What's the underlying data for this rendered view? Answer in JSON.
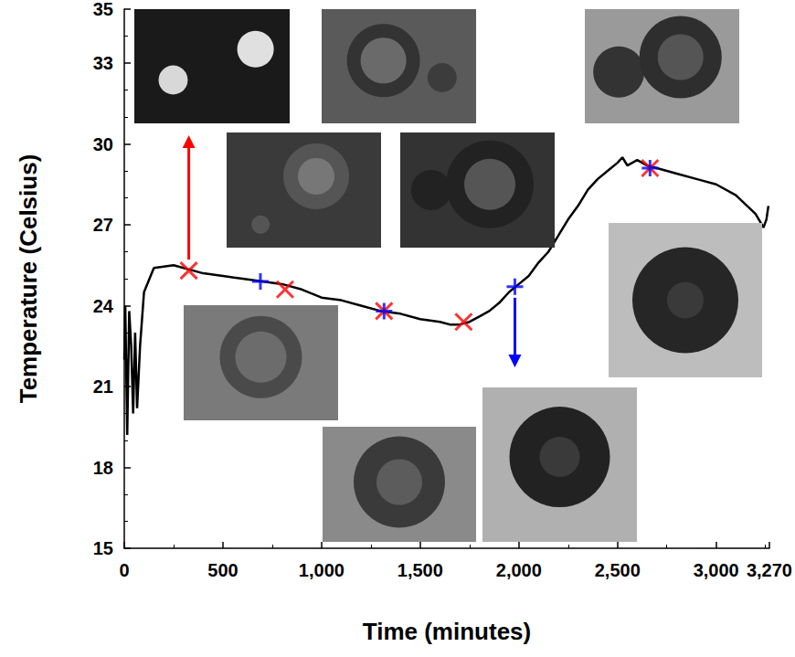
{
  "chart_data": {
    "type": "line",
    "xlabel": "Time (minutes)",
    "ylabel": "Temperature (Celsius)",
    "xlim": [
      0,
      3270
    ],
    "xticks": [
      0,
      500,
      1000,
      1500,
      2000,
      2500,
      3000
    ],
    "ylim": [
      15,
      35
    ],
    "yticks": [
      15,
      18,
      21,
      24,
      27,
      30,
      33
    ],
    "grid": false,
    "series": [
      {
        "type": "line",
        "color": "#000000",
        "x": [
          0,
          5,
          15,
          25,
          35,
          45,
          55,
          65,
          80,
          100,
          150,
          250,
          400,
          500,
          600,
          700,
          800,
          900,
          1000,
          1100,
          1200,
          1300,
          1400,
          1500,
          1600,
          1650,
          1700,
          1750,
          1800,
          1850,
          1900,
          1950,
          2000,
          2050,
          2100,
          2150,
          2200,
          2250,
          2300,
          2350,
          2400,
          2450,
          2500,
          2525,
          2550,
          2600,
          2650,
          2700,
          2800,
          2900,
          3000,
          3100,
          3200,
          3240,
          3255,
          3265
        ],
        "values": [
          22.0,
          24.0,
          19.2,
          23.8,
          22.5,
          20.0,
          23.0,
          20.2,
          22.5,
          24.5,
          25.4,
          25.5,
          25.2,
          25.1,
          25.0,
          24.9,
          24.8,
          24.6,
          24.3,
          24.2,
          24.0,
          23.8,
          23.7,
          23.5,
          23.4,
          23.3,
          23.3,
          23.4,
          23.6,
          23.8,
          24.1,
          24.5,
          24.8,
          25.1,
          25.6,
          26.0,
          26.6,
          27.2,
          27.7,
          28.3,
          28.7,
          29.0,
          29.3,
          29.5,
          29.2,
          29.4,
          29.2,
          29.1,
          28.9,
          28.7,
          28.5,
          28.1,
          27.4,
          26.9,
          27.2,
          27.7
        ]
      },
      {
        "type": "scatter",
        "color": "#ff0000",
        "marker": "x",
        "x": [
          327,
          815,
          1317,
          1720,
          2665
        ],
        "values": [
          25.3,
          24.6,
          23.8,
          23.4,
          29.1
        ]
      },
      {
        "type": "scatter",
        "color": "#0000ff",
        "marker": "plus",
        "x": [
          690,
          1317,
          1980,
          2665
        ],
        "values": [
          24.9,
          23.8,
          24.7,
          29.1
        ]
      }
    ]
  }
}
